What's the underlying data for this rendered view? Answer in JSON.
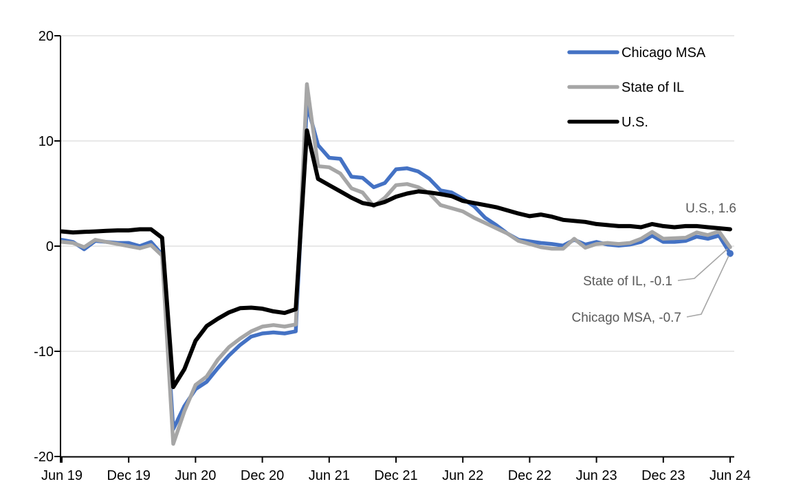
{
  "chart_data": {
    "type": "line",
    "title": "",
    "x_axis": {
      "tick_labels": [
        "Jun 19",
        "Dec 19",
        "Jun 20",
        "Dec 20",
        "Jun 21",
        "Dec 21",
        "Jun 22",
        "Dec 22",
        "Jun 23",
        "Dec 23",
        "Jun 24"
      ],
      "start": "Jun 2019",
      "end": "Jun 2024",
      "points_per_tick": 6
    },
    "y_axis": {
      "ticks": [
        20,
        10,
        0,
        -10,
        -20
      ],
      "range": [
        -20,
        20
      ]
    },
    "series": [
      {
        "name": "Chicago MSA",
        "color": "#4472C4",
        "end_label_value": -0.7,
        "values": [
          0.6,
          0.4,
          -0.3,
          0.5,
          0.4,
          0.3,
          0.3,
          0.0,
          0.4,
          -0.8,
          -17.4,
          -15.2,
          -13.6,
          -12.9,
          -11.6,
          -10.4,
          -9.4,
          -8.6,
          -8.3,
          -8.2,
          -8.3,
          -8.1,
          13.5,
          9.6,
          8.4,
          8.3,
          6.6,
          6.5,
          5.6,
          6.0,
          7.3,
          7.4,
          7.1,
          6.4,
          5.3,
          5.1,
          4.5,
          3.8,
          2.7,
          2.0,
          1.2,
          0.6,
          0.45,
          0.3,
          0.2,
          0.05,
          0.6,
          0.15,
          0.4,
          0.15,
          0.05,
          0.15,
          0.4,
          1.0,
          0.4,
          0.4,
          0.5,
          0.9,
          0.7,
          1.0,
          -0.7
        ]
      },
      {
        "name": "State of IL",
        "color": "#A6A6A6",
        "end_label_value": -0.1,
        "values": [
          0.4,
          0.3,
          -0.1,
          0.6,
          0.4,
          0.2,
          0.0,
          -0.2,
          0.1,
          -0.9,
          -18.8,
          -15.7,
          -13.2,
          -12.4,
          -10.8,
          -9.6,
          -8.8,
          -8.1,
          -7.65,
          -7.5,
          -7.65,
          -7.45,
          15.4,
          7.6,
          7.5,
          6.9,
          5.5,
          5.1,
          3.8,
          4.6,
          5.8,
          5.9,
          5.6,
          5.0,
          3.9,
          3.6,
          3.3,
          2.7,
          2.2,
          1.7,
          1.2,
          0.5,
          0.2,
          -0.1,
          -0.25,
          -0.25,
          0.7,
          -0.15,
          0.2,
          0.3,
          0.2,
          0.3,
          0.7,
          1.35,
          0.7,
          0.75,
          0.8,
          1.3,
          1.05,
          1.4,
          -0.1
        ]
      },
      {
        "name": "U.S.",
        "color": "#000000",
        "end_label_value": 1.6,
        "values": [
          1.4,
          1.3,
          1.35,
          1.4,
          1.45,
          1.5,
          1.5,
          1.6,
          1.6,
          0.8,
          -13.4,
          -11.7,
          -9.0,
          -7.6,
          -6.9,
          -6.3,
          -5.9,
          -5.85,
          -5.95,
          -6.2,
          -6.35,
          -6.0,
          11.0,
          6.4,
          5.8,
          5.2,
          4.6,
          4.1,
          3.9,
          4.2,
          4.7,
          5.0,
          5.2,
          5.1,
          4.95,
          4.75,
          4.3,
          4.1,
          3.9,
          3.7,
          3.4,
          3.1,
          2.85,
          3.0,
          2.8,
          2.5,
          2.4,
          2.3,
          2.1,
          2.0,
          1.9,
          1.9,
          1.8,
          2.1,
          1.9,
          1.8,
          1.9,
          1.9,
          1.8,
          1.7,
          1.6
        ]
      }
    ],
    "legend": {
      "position": "top-right",
      "items": [
        "Chicago MSA",
        "State of IL",
        "U.S."
      ]
    },
    "annotations": [
      {
        "text": "U.S., 1.6"
      },
      {
        "text": "State of IL, -0.1"
      },
      {
        "text": "Chicago MSA, -0.7"
      }
    ],
    "colors": {
      "gridline": "#D9D9D9",
      "axis": "#000000",
      "annotation_text": "#595959",
      "leader_line": "#A6A6A6"
    }
  }
}
